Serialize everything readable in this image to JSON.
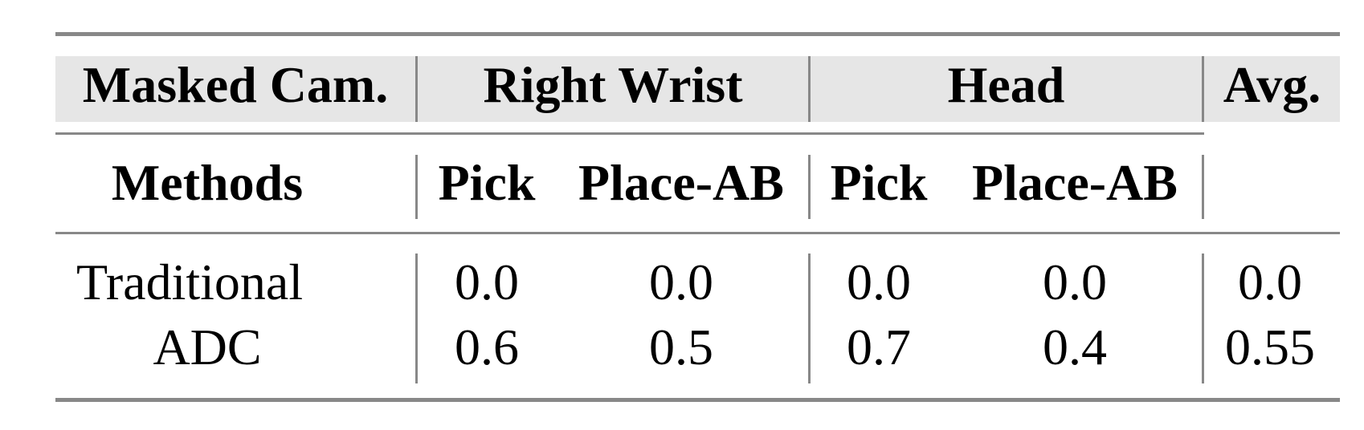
{
  "table": {
    "header_row1": {
      "first": "Masked Cam.",
      "groups": [
        "Right Wrist",
        "Head"
      ],
      "last": "Avg."
    },
    "header_row2": {
      "first": "Methods",
      "columns": [
        "Pick",
        "Place-AB",
        "Pick",
        "Place-AB"
      ]
    },
    "rows": [
      {
        "method": "Traditional",
        "values": [
          "0.0",
          "0.0",
          "0.0",
          "0.0"
        ],
        "avg": "0.0"
      },
      {
        "method": "ADC",
        "values": [
          "0.6",
          "0.5",
          "0.7",
          "0.4"
        ],
        "avg": "0.55"
      }
    ],
    "colors": {
      "rule": "#888888",
      "header_bg": "#e6e6e6"
    }
  }
}
